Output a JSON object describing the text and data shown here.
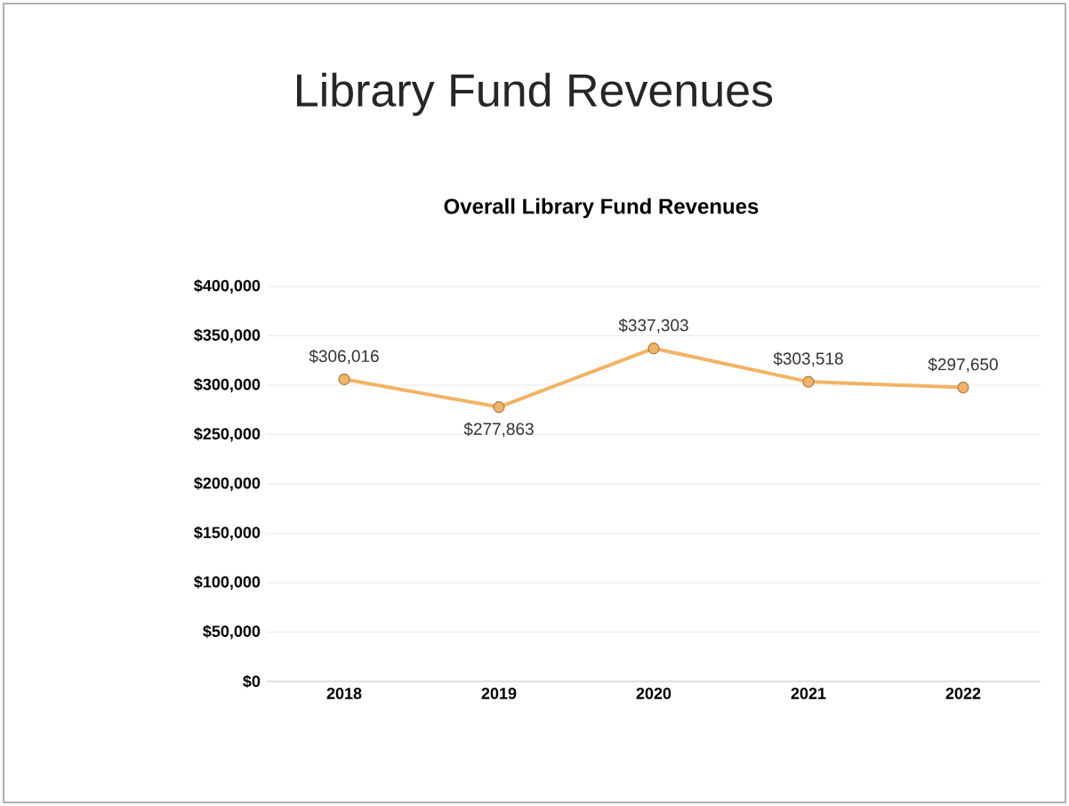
{
  "chart_data": {
    "type": "line",
    "title": "Library Fund Revenues",
    "subtitle": "Overall Library Fund Revenues",
    "categories": [
      "2018",
      "2019",
      "2020",
      "2021",
      "2022"
    ],
    "series": [
      {
        "color": "#f2b366",
        "values": [
          306016,
          277863,
          337303,
          303518,
          297650
        ],
        "value_labels": [
          "$306,016",
          "$277,863",
          "$337,303",
          "$303,518",
          "$297,650"
        ]
      }
    ],
    "ylim": [
      0,
      400000
    ],
    "yticks": [
      {
        "value": 0,
        "label": "$0"
      },
      {
        "value": 50000,
        "label": "$50,000"
      },
      {
        "value": 100000,
        "label": "$100,000"
      },
      {
        "value": 150000,
        "label": "$150,000"
      },
      {
        "value": 200000,
        "label": "$200,000"
      },
      {
        "value": 250000,
        "label": "$250,000"
      },
      {
        "value": 300000,
        "label": "$300,000"
      },
      {
        "value": 350000,
        "label": "$350,000"
      },
      {
        "value": 400000,
        "label": "$400,000"
      }
    ],
    "grid": "y",
    "marker": "circle",
    "line_style": "solid"
  }
}
